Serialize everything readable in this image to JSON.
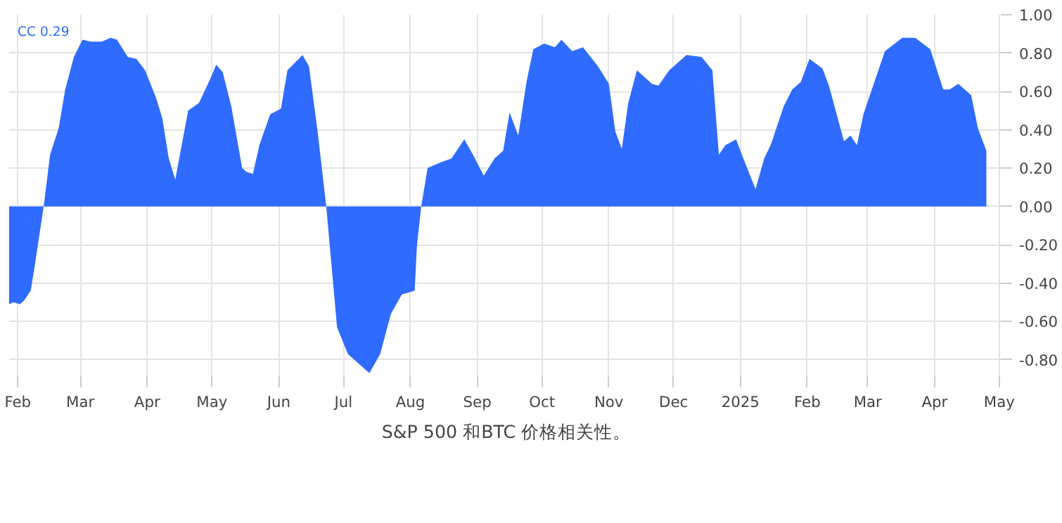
{
  "chart_data": {
    "type": "area",
    "title": "S&P 500 和BTC 价格相关性。",
    "annotations": [
      "CC 0.29"
    ],
    "x": [
      "2024-01-28",
      "2024-01-30",
      "2024-02-02",
      "2024-02-04",
      "2024-02-07",
      "2024-02-09",
      "2024-02-13",
      "2024-02-16",
      "2024-02-20",
      "2024-02-23",
      "2024-02-27",
      "2024-03-02",
      "2024-03-06",
      "2024-03-11",
      "2024-03-15",
      "2024-03-18",
      "2024-03-23",
      "2024-03-27",
      "2024-03-31",
      "2024-04-05",
      "2024-04-08",
      "2024-04-11",
      "2024-04-14",
      "2024-04-17",
      "2024-04-20",
      "2024-04-25",
      "2024-04-30",
      "2024-05-03",
      "2024-05-06",
      "2024-05-10",
      "2024-05-15",
      "2024-05-17",
      "2024-05-20",
      "2024-05-23",
      "2024-05-28",
      "2024-06-02",
      "2024-06-05",
      "2024-06-12",
      "2024-06-15",
      "2024-06-19",
      "2024-06-23",
      "2024-06-28",
      "2024-07-03",
      "2024-07-09",
      "2024-07-13",
      "2024-07-18",
      "2024-07-23",
      "2024-07-28",
      "2024-08-03",
      "2024-08-04",
      "2024-08-06",
      "2024-08-09",
      "2024-08-15",
      "2024-08-20",
      "2024-08-26",
      "2024-08-30",
      "2024-09-04",
      "2024-09-09",
      "2024-09-13",
      "2024-09-16",
      "2024-09-20",
      "2024-09-24",
      "2024-09-27",
      "2024-10-02",
      "2024-10-07",
      "2024-10-10",
      "2024-10-15",
      "2024-10-20",
      "2024-10-27",
      "2024-11-01",
      "2024-11-04",
      "2024-11-07",
      "2024-11-10",
      "2024-11-14",
      "2024-11-21",
      "2024-11-24",
      "2024-11-29",
      "2024-12-07",
      "2024-12-14",
      "2024-12-19",
      "2024-12-22",
      "2024-12-25",
      "2024-12-30",
      "2025-01-02",
      "2025-01-08",
      "2025-01-12",
      "2025-01-15",
      "2025-01-21",
      "2025-01-25",
      "2025-01-29",
      "2025-02-02",
      "2025-02-08",
      "2025-02-11",
      "2025-02-18",
      "2025-02-21",
      "2025-02-24",
      "2025-02-27",
      "2025-03-05",
      "2025-03-09",
      "2025-03-17",
      "2025-03-23",
      "2025-03-30",
      "2025-04-05",
      "2025-04-08",
      "2025-04-12",
      "2025-04-18",
      "2025-04-21",
      "2025-04-25"
    ],
    "series": [
      {
        "color": "#2f6bff",
        "values": [
          -0.51,
          -0.5,
          -0.51,
          -0.49,
          -0.44,
          -0.3,
          0.0,
          0.27,
          0.41,
          0.61,
          0.78,
          0.87,
          0.86,
          0.86,
          0.88,
          0.87,
          0.78,
          0.77,
          0.71,
          0.57,
          0.46,
          0.25,
          0.14,
          0.32,
          0.5,
          0.54,
          0.66,
          0.74,
          0.7,
          0.52,
          0.2,
          0.18,
          0.17,
          0.32,
          0.48,
          0.51,
          0.71,
          0.79,
          0.73,
          0.39,
          0.0,
          -0.63,
          -0.77,
          -0.83,
          -0.87,
          -0.77,
          -0.56,
          -0.46,
          -0.44,
          -0.21,
          0.0,
          0.2,
          0.23,
          0.25,
          0.35,
          0.27,
          0.16,
          0.25,
          0.29,
          0.49,
          0.37,
          0.66,
          0.82,
          0.85,
          0.83,
          0.87,
          0.81,
          0.83,
          0.73,
          0.64,
          0.39,
          0.3,
          0.54,
          0.71,
          0.64,
          0.63,
          0.71,
          0.79,
          0.78,
          0.71,
          0.27,
          0.32,
          0.35,
          0.26,
          0.09,
          0.25,
          0.32,
          0.52,
          0.61,
          0.65,
          0.77,
          0.72,
          0.63,
          0.34,
          0.37,
          0.32,
          0.48,
          0.68,
          0.81,
          0.88,
          0.88,
          0.82,
          0.61,
          0.61,
          0.64,
          0.58,
          0.41,
          0.29
        ]
      }
    ],
    "xlim": [
      "2024-01-28",
      "2025-05-03"
    ],
    "xticks": [
      {
        "value": "2024-02-01",
        "label": "Feb"
      },
      {
        "value": "2024-03-01",
        "label": "Mar"
      },
      {
        "value": "2024-04-01",
        "label": "Apr"
      },
      {
        "value": "2024-05-01",
        "label": "May"
      },
      {
        "value": "2024-06-01",
        "label": "Jun"
      },
      {
        "value": "2024-07-01",
        "label": "Jul"
      },
      {
        "value": "2024-08-01",
        "label": "Aug"
      },
      {
        "value": "2024-09-01",
        "label": "Sep"
      },
      {
        "value": "2024-10-01",
        "label": "Oct"
      },
      {
        "value": "2024-11-01",
        "label": "Nov"
      },
      {
        "value": "2024-12-01",
        "label": "Dec"
      },
      {
        "value": "2025-01-01",
        "label": "2025"
      },
      {
        "value": "2025-02-01",
        "label": "Feb"
      },
      {
        "value": "2025-03-01",
        "label": "Mar"
      },
      {
        "value": "2025-04-01",
        "label": "Apr"
      },
      {
        "value": "2025-05-01",
        "label": "May"
      }
    ],
    "ylim": [
      -0.9,
      1.0
    ],
    "yticks": [
      {
        "value": -0.8,
        "label": "-0.80"
      },
      {
        "value": -0.6,
        "label": "-0.60"
      },
      {
        "value": -0.4,
        "label": "-0.40"
      },
      {
        "value": -0.2,
        "label": "-0.20"
      },
      {
        "value": 0,
        "label": "0.00"
      },
      {
        "value": 0.2,
        "label": "0.20"
      },
      {
        "value": 0.4,
        "label": "0.40"
      },
      {
        "value": 0.6,
        "label": "0.60"
      },
      {
        "value": 0.8,
        "label": "0.80"
      },
      {
        "value": 1.0,
        "label": "1.00"
      }
    ],
    "grid": true
  }
}
